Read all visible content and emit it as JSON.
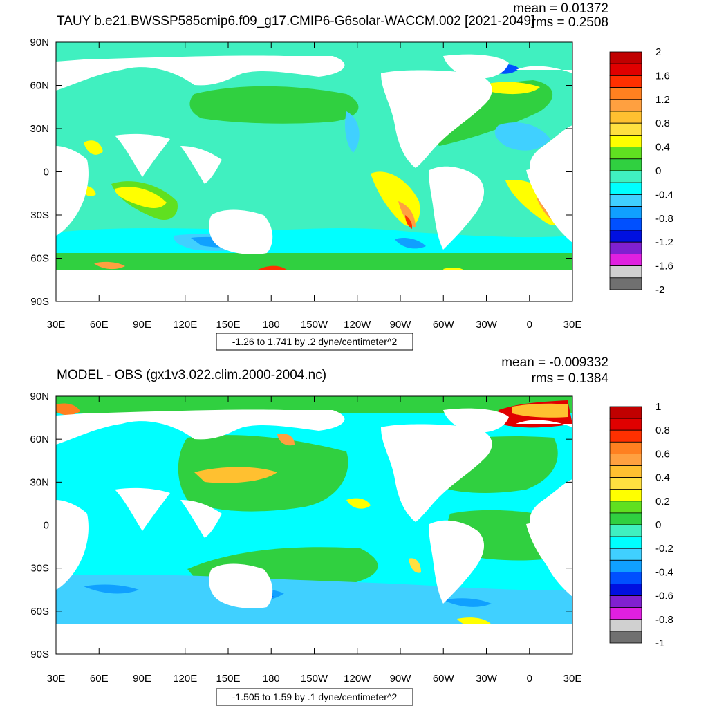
{
  "panels": [
    {
      "title": "TAUY b.e21.BWSSP585cmip6.f09_g17.CMIP6-G6solar-WACCM.002 [2021-2049]",
      "mean_text": "mean = 0.01372",
      "rms_text": "rms = 0.2508",
      "info_text": "-1.26 to 1.741 by .2 dyne/centimeter^2",
      "colorbar_labels": [
        "2",
        "1.6",
        "1.2",
        "0.8",
        "0.4",
        "0",
        "-0.4",
        "-0.8",
        "-1.2",
        "-1.6",
        "-2"
      ],
      "colors": [
        "#c00000",
        "#e00000",
        "#ff3000",
        "#ff8020",
        "#ffa040",
        "#ffc030",
        "#ffe040",
        "#ffff00",
        "#60e020",
        "#30d040",
        "#40f0c0",
        "#00ffff",
        "#40d0ff",
        "#10a0ff",
        "#0050ff",
        "#0010e0",
        "#8020d0",
        "#e020e0",
        "#d0d0d0",
        "#707070"
      ]
    },
    {
      "title": "MODEL - OBS (gx1v3.022.clim.2000-2004.nc)",
      "mean_text": "mean = -0.009332",
      "rms_text": "rms = 0.1384",
      "info_text": "-1.505 to 1.59 by .1 dyne/centimeter^2",
      "colorbar_labels": [
        "1",
        "0.8",
        "0.6",
        "0.4",
        "0.2",
        "0",
        "-0.2",
        "-0.4",
        "-0.6",
        "-0.8",
        "-1"
      ],
      "colors": [
        "#c00000",
        "#e00000",
        "#ff3000",
        "#ff8020",
        "#ffa040",
        "#ffc030",
        "#ffe040",
        "#ffff00",
        "#60e020",
        "#30d040",
        "#40f0c0",
        "#00ffff",
        "#40d0ff",
        "#10a0ff",
        "#0050ff",
        "#0010e0",
        "#8020d0",
        "#e020e0",
        "#d0d0d0",
        "#707070"
      ]
    }
  ],
  "axes": {
    "lat_labels": [
      "90N",
      "60N",
      "30N",
      "0",
      "30S",
      "60S",
      "90S"
    ],
    "lon_labels": [
      "30E",
      "60E",
      "90E",
      "120E",
      "150E",
      "180",
      "150W",
      "120W",
      "90W",
      "60W",
      "30W",
      "0",
      "30E"
    ]
  }
}
